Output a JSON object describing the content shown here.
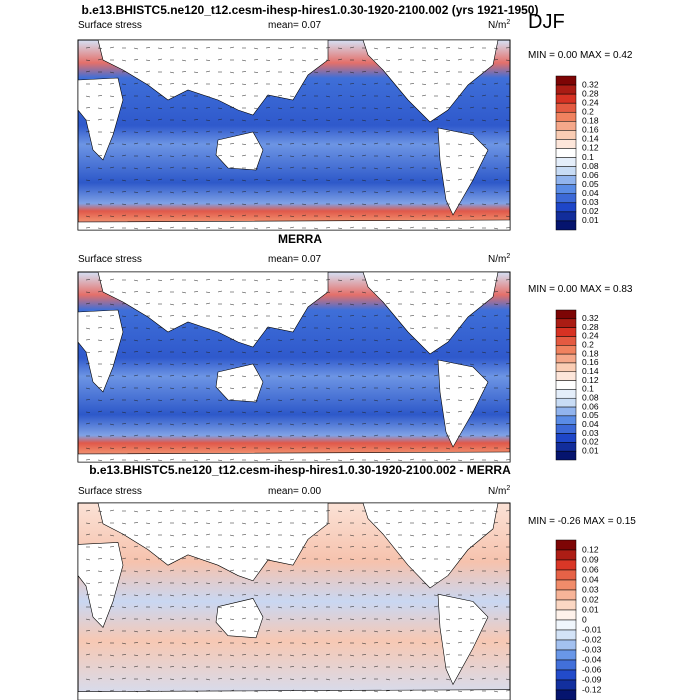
{
  "title": "b.e13.BHISTC5.ne120_t12.cesm-ihesp-hires1.0.30-1920-2100.002 (yrs 1921-1950)",
  "season": "DJF",
  "panels": [
    {
      "title": null,
      "left": "Surface stress",
      "mean": "mean=  0.07",
      "units": "N/m",
      "units_exp": "2",
      "minmax": "MIN =  0.00 MAX =  0.42",
      "colorbar": [
        "0.32",
        "0.28",
        "0.24",
        "0.2",
        "0.18",
        "0.16",
        "0.14",
        "0.12",
        "0.1",
        "0.08",
        "0.06",
        "0.05",
        "0.04",
        "0.03",
        "0.02",
        "0.01"
      ]
    },
    {
      "title": "MERRA",
      "left": "Surface stress",
      "mean": "mean=  0.07",
      "units": "N/m",
      "units_exp": "2",
      "minmax": "MIN =  0.00 MAX =  0.83",
      "colorbar": [
        "0.32",
        "0.28",
        "0.24",
        "0.2",
        "0.18",
        "0.16",
        "0.14",
        "0.12",
        "0.1",
        "0.08",
        "0.06",
        "0.05",
        "0.04",
        "0.03",
        "0.02",
        "0.01"
      ]
    },
    {
      "title": "b.e13.BHISTC5.ne120_t12.cesm-ihesp-hires1.0.30-1920-2100.002 - MERRA",
      "left": "Surface stress",
      "mean": "mean=  0.00",
      "units": "N/m",
      "units_exp": "2",
      "minmax": "MIN = -0.26 MAX =  0.15",
      "colorbar": [
        "0.12",
        "0.09",
        "0.06",
        "0.04",
        "0.03",
        "0.02",
        "0.01",
        "0",
        "-0.01",
        "-0.02",
        "-0.03",
        "-0.04",
        "-0.06",
        "-0.09",
        "-0.12"
      ]
    }
  ]
}
